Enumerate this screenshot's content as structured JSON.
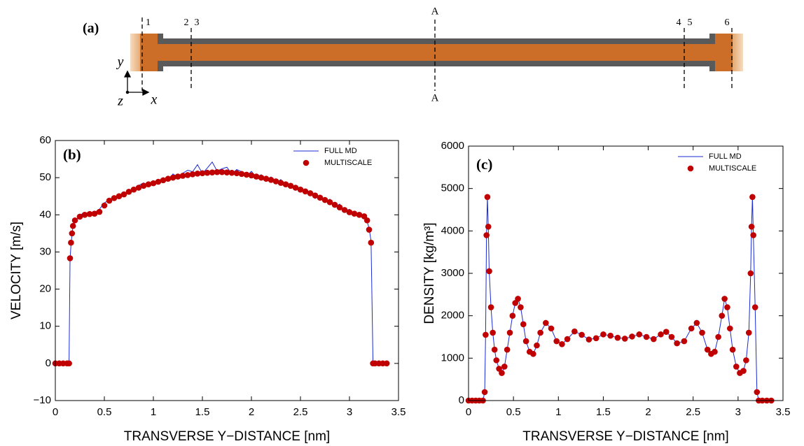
{
  "diagram": {
    "panel_label": "(a)",
    "sections": [
      "1",
      "2",
      "3",
      "4",
      "5",
      "6"
    ],
    "cut_top": "A",
    "cut_bottom": "A",
    "axis_y": "y",
    "axis_x": "x",
    "axis_z": "z"
  },
  "chart_data": [
    {
      "type": "line",
      "panel_label": "(b)",
      "x_label": "TRANSVERSE Y−DISTANCE [nm]",
      "y_label": "VELOCITY [m/s]",
      "xlim": [
        0,
        3.5
      ],
      "xticks": [
        0,
        0.5,
        1,
        1.5,
        2,
        2.5,
        3,
        3.5
      ],
      "ylim": [
        -10,
        60
      ],
      "yticks": [
        {
          "value": -10,
          "label": "−10"
        },
        0,
        10,
        20,
        30,
        40,
        50,
        60
      ],
      "legend": "upper right",
      "x": [
        0,
        0.04,
        0.08,
        0.12,
        0.14,
        0.15,
        0.16,
        0.17,
        0.18,
        0.2,
        0.25,
        0.3,
        0.35,
        0.4,
        0.45,
        0.5,
        0.55,
        0.6,
        0.65,
        0.7,
        0.75,
        0.8,
        0.85,
        0.9,
        0.95,
        1,
        1.05,
        1.1,
        1.15,
        1.2,
        1.25,
        1.3,
        1.35,
        1.4,
        1.45,
        1.5,
        1.55,
        1.6,
        1.65,
        1.7,
        1.75,
        1.8,
        1.85,
        1.9,
        1.95,
        2,
        2.05,
        2.1,
        2.15,
        2.2,
        2.25,
        2.3,
        2.35,
        2.4,
        2.45,
        2.5,
        2.55,
        2.6,
        2.65,
        2.7,
        2.75,
        2.8,
        2.85,
        2.9,
        2.95,
        3,
        3.05,
        3.1,
        3.15,
        3.18,
        3.2,
        3.22,
        3.24,
        3.26,
        3.3,
        3.34,
        3.38
      ],
      "series": [
        {
          "name": "FULL MD",
          "color": "#1a2bd6",
          "style": "line",
          "values": [
            0,
            0,
            0,
            0,
            0,
            28,
            32,
            34.5,
            37,
            38,
            40,
            40.5,
            40.1,
            40.6,
            41.5,
            43.2,
            44,
            44.2,
            45.6,
            45.1,
            46.8,
            46.5,
            47.9,
            48.6,
            48,
            49.2,
            48.6,
            50,
            49.4,
            51,
            50.1,
            51.2,
            52,
            51.6,
            53.5,
            51.1,
            52.6,
            54.2,
            51.8,
            52.4,
            52.8,
            51,
            52.2,
            51.6,
            50.4,
            51.7,
            50.1,
            50.8,
            49.2,
            50.2,
            48.6,
            49.5,
            47.8,
            48.4,
            46.6,
            47.5,
            45.8,
            46.5,
            44.4,
            45.3,
            43.5,
            44.2,
            42.1,
            42.9,
            41,
            41.5,
            39.8,
            40.3,
            39,
            38.2,
            36.4,
            33,
            0,
            0,
            0,
            0,
            0
          ]
        },
        {
          "name": "MULTISCALE",
          "color": "#c00000",
          "style": "markers",
          "values": [
            0,
            0,
            0,
            0,
            0,
            28.3,
            32.5,
            35,
            37,
            38.5,
            39.5,
            40,
            40.2,
            40.3,
            40.8,
            42.5,
            43.8,
            44.5,
            45,
            45.5,
            46.2,
            46.8,
            47.3,
            47.8,
            48.2,
            48.5,
            48.9,
            49.3,
            49.7,
            50,
            50.3,
            50.5,
            50.7,
            50.9,
            51.1,
            51.2,
            51.3,
            51.4,
            51.5,
            51.5,
            51.4,
            51.3,
            51.2,
            51,
            50.8,
            50.6,
            50.3,
            50,
            49.7,
            49.4,
            49,
            48.6,
            48.2,
            47.8,
            47.3,
            46.8,
            46.3,
            45.8,
            45.2,
            44.6,
            44,
            43.4,
            42.7,
            42,
            41.3,
            40.7,
            40.3,
            40,
            39.6,
            38.5,
            36,
            32.5,
            0,
            0,
            0,
            0,
            0
          ]
        }
      ]
    },
    {
      "type": "line",
      "panel_label": "(c)",
      "x_label": "TRANSVERSE Y−DISTANCE [nm]",
      "y_label": "DENSITY [kg/m³]",
      "xlim": [
        0,
        3.5
      ],
      "xticks": [
        0,
        0.5,
        1,
        1.5,
        2,
        2.5,
        3,
        3.5
      ],
      "ylim": [
        0,
        6000
      ],
      "yticks": [
        0,
        1000,
        2000,
        3000,
        4000,
        5000,
        6000
      ],
      "legend": "upper right",
      "x": [
        0,
        0.04,
        0.08,
        0.12,
        0.16,
        0.18,
        0.19,
        0.2,
        0.21,
        0.22,
        0.23,
        0.25,
        0.27,
        0.29,
        0.31,
        0.34,
        0.37,
        0.4,
        0.43,
        0.46,
        0.49,
        0.52,
        0.55,
        0.58,
        0.61,
        0.64,
        0.68,
        0.72,
        0.76,
        0.8,
        0.86,
        0.92,
        0.98,
        1.04,
        1.1,
        1.18,
        1.26,
        1.34,
        1.42,
        1.5,
        1.58,
        1.66,
        1.74,
        1.82,
        1.9,
        1.98,
        2.06,
        2.14,
        2.2,
        2.26,
        2.32,
        2.4,
        2.48,
        2.54,
        2.6,
        2.66,
        2.7,
        2.74,
        2.78,
        2.82,
        2.85,
        2.88,
        2.91,
        2.94,
        2.98,
        3.02,
        3.06,
        3.09,
        3.12,
        3.14,
        3.15,
        3.16,
        3.17,
        3.19,
        3.21,
        3.23,
        3.27,
        3.32,
        3.37
      ],
      "series": [
        {
          "name": "FULL MD",
          "color": "#1a2bd6",
          "style": "line",
          "values": [
            0,
            0,
            0,
            0,
            0,
            200,
            1550,
            3900,
            4800,
            4100,
            3050,
            2200,
            1600,
            1200,
            950,
            750,
            650,
            800,
            1200,
            1600,
            2000,
            2300,
            2400,
            2200,
            1800,
            1400,
            1150,
            1100,
            1300,
            1600,
            1830,
            1700,
            1400,
            1330,
            1450,
            1630,
            1550,
            1440,
            1470,
            1560,
            1530,
            1480,
            1460,
            1510,
            1560,
            1500,
            1450,
            1560,
            1620,
            1500,
            1350,
            1400,
            1700,
            1830,
            1600,
            1200,
            1100,
            1150,
            1500,
            2000,
            2400,
            2200,
            1700,
            1200,
            800,
            650,
            700,
            950,
            1600,
            3000,
            4100,
            4800,
            3900,
            2200,
            200,
            0,
            0,
            0,
            0
          ]
        },
        {
          "name": "MULTISCALE",
          "color": "#c00000",
          "style": "markers",
          "values": [
            0,
            0,
            0,
            0,
            0,
            200,
            1550,
            3900,
            4800,
            4100,
            3050,
            2200,
            1600,
            1200,
            950,
            750,
            650,
            800,
            1200,
            1600,
            2000,
            2300,
            2400,
            2200,
            1800,
            1400,
            1150,
            1100,
            1300,
            1600,
            1830,
            1700,
            1400,
            1330,
            1450,
            1630,
            1550,
            1440,
            1470,
            1560,
            1530,
            1480,
            1460,
            1510,
            1560,
            1500,
            1450,
            1560,
            1620,
            1500,
            1350,
            1400,
            1700,
            1830,
            1600,
            1200,
            1100,
            1150,
            1500,
            2000,
            2400,
            2200,
            1700,
            1200,
            800,
            650,
            700,
            950,
            1600,
            3000,
            4100,
            4800,
            3900,
            2200,
            200,
            0,
            0,
            0,
            0
          ]
        }
      ]
    }
  ]
}
